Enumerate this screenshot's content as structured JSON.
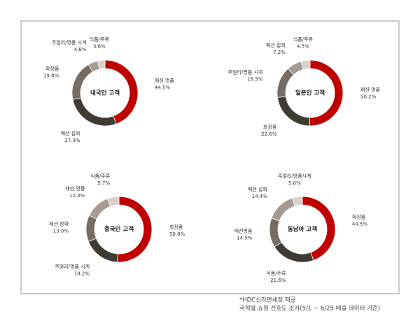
{
  "chart_data": [
    {
      "type": "pie",
      "title": "내국인 고객",
      "categories": [
        "패션 명품",
        "패션 잡화",
        "화장품",
        "주얼리/명품 시계",
        "식품/주류"
      ],
      "values": [
        44.5,
        27.3,
        19.8,
        4.8,
        3.6
      ],
      "value_labels": [
        "44.5%",
        "27.3%",
        "19.8%",
        "4.8%",
        "3.6%"
      ],
      "colors": [
        "#c00000",
        "#403a35",
        "#766c64",
        "#a69b92",
        "#d9d0c9"
      ]
    },
    {
      "type": "pie",
      "title": "일본인 고객",
      "categories": [
        "패션 명품",
        "화장품",
        "주얼리/명품 시계",
        "패션 잡화",
        "식품/주류"
      ],
      "values": [
        50.2,
        22.6,
        15.5,
        7.2,
        4.5
      ],
      "value_labels": [
        "50.2%",
        "22.6%",
        "15.5%",
        "7.2%",
        "4.5%"
      ],
      "colors": [
        "#c00000",
        "#403a35",
        "#766c64",
        "#a69b92",
        "#d9d0c9"
      ]
    },
    {
      "type": "pie",
      "title": "중국인 고객",
      "categories": [
        "화장품",
        "주얼리/명품 시계",
        "패션 잡화",
        "패션 명품",
        "식품/주류"
      ],
      "values": [
        50.8,
        18.2,
        13.0,
        12.3,
        5.7
      ],
      "value_labels": [
        "50.8%",
        "18.2%",
        "13.0%",
        "12.3%",
        "5.7%"
      ],
      "colors": [
        "#c00000",
        "#403a35",
        "#766c64",
        "#a69b92",
        "#d9d0c9"
      ]
    },
    {
      "type": "pie",
      "title": "동남아 고객",
      "categories": [
        "화장품",
        "식품/주류",
        "패션명품",
        "패션 잡화",
        "주얼리/명품시계"
      ],
      "values": [
        44.5,
        21.6,
        14.5,
        14.4,
        5.0
      ],
      "value_labels": [
        "44.5%",
        "21.6%",
        "14.5%",
        "14.4%",
        "5.0%"
      ],
      "colors": [
        "#c00000",
        "#403a35",
        "#766c64",
        "#a69b92",
        "#d9d0c9"
      ]
    }
  ],
  "footnote": [
    "*HDC신라면세점 제공",
    "국적별 쇼핑 선호도 조사(5/1 ~ 6/25 매출 데이터 기준)"
  ]
}
